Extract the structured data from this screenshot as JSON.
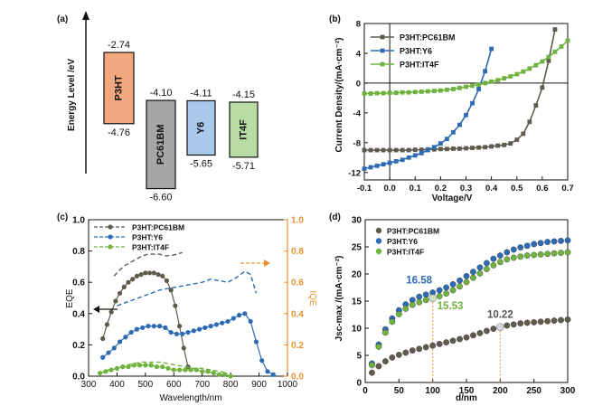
{
  "chart_data": [
    {
      "panel": "(a)",
      "type": "energy-level-diagram",
      "ylabel": "Energy Level /eV",
      "materials": [
        {
          "name": "P3HT",
          "lumo": -2.74,
          "homo": -4.76,
          "lumo_label": "-2.74",
          "homo_label": "-4.76",
          "color": "#F2A77E"
        },
        {
          "name": "PC61BM",
          "lumo": -4.1,
          "homo": -6.6,
          "lumo_label": "-4.10",
          "homo_label": "-6.60",
          "color": "#A6A6A6"
        },
        {
          "name": "Y6",
          "lumo": -4.11,
          "homo": -5.65,
          "lumo_label": "-4.11",
          "homo_label": "-5.65",
          "color": "#A9C8EA"
        },
        {
          "name": "IT4F",
          "lumo": -4.15,
          "homo": -5.71,
          "lumo_label": "-4.15",
          "homo_label": "-5.71",
          "color": "#B8DCA4"
        }
      ]
    },
    {
      "panel": "(b)",
      "type": "line",
      "xlabel": "Voltage/V",
      "ylabel": "Current Density/(mA·cm⁻²)",
      "xlim": [
        -0.1,
        0.7
      ],
      "ylim": [
        -13,
        8
      ],
      "xticks": [
        "-0.1",
        "0.0",
        "0.1",
        "0.2",
        "0.3",
        "0.4",
        "0.5",
        "0.6",
        "0.7"
      ],
      "yticks": [
        "-12",
        "-8",
        "-4",
        "0",
        "4",
        "8"
      ],
      "legend_position": "top-left",
      "series": [
        {
          "name": "P3HT:PC61BM",
          "color": "#5E5A4C",
          "marker": "square",
          "x": [
            -0.1,
            -0.075,
            -0.05,
            -0.025,
            0,
            0.025,
            0.05,
            0.075,
            0.1,
            0.125,
            0.15,
            0.175,
            0.2,
            0.225,
            0.25,
            0.275,
            0.3,
            0.325,
            0.35,
            0.375,
            0.4,
            0.425,
            0.45,
            0.475,
            0.5,
            0.525,
            0.55,
            0.575,
            0.6,
            0.625,
            0.65
          ],
          "y": [
            -9.0,
            -9.0,
            -9.0,
            -9.0,
            -9.0,
            -9.0,
            -9.0,
            -9.0,
            -8.95,
            -8.95,
            -8.9,
            -8.9,
            -8.85,
            -8.85,
            -8.8,
            -8.8,
            -8.75,
            -8.7,
            -8.65,
            -8.6,
            -8.5,
            -8.4,
            -8.3,
            -8.1,
            -7.6,
            -6.8,
            -5.2,
            -3.0,
            -0.6,
            3.0,
            7.2
          ]
        },
        {
          "name": "P3HT:Y6",
          "color": "#2E6BB5",
          "marker": "square",
          "x": [
            -0.1,
            -0.075,
            -0.05,
            -0.025,
            0,
            0.025,
            0.05,
            0.075,
            0.1,
            0.125,
            0.15,
            0.175,
            0.2,
            0.225,
            0.25,
            0.275,
            0.3,
            0.325,
            0.35,
            0.375,
            0.4
          ],
          "y": [
            -11.5,
            -11.3,
            -11.1,
            -10.9,
            -10.7,
            -10.5,
            -10.3,
            -10.0,
            -9.7,
            -9.4,
            -9.0,
            -8.6,
            -8.1,
            -7.5,
            -6.6,
            -5.6,
            -4.3,
            -2.7,
            -0.8,
            1.6,
            4.6
          ]
        },
        {
          "name": "P3HT:IT4F",
          "color": "#6FB23E",
          "marker": "square",
          "x": [
            -0.1,
            -0.075,
            -0.05,
            -0.025,
            0,
            0.025,
            0.05,
            0.075,
            0.1,
            0.125,
            0.15,
            0.175,
            0.2,
            0.225,
            0.25,
            0.275,
            0.3,
            0.325,
            0.35,
            0.375,
            0.4,
            0.425,
            0.45,
            0.475,
            0.5,
            0.525,
            0.55,
            0.575,
            0.6,
            0.625,
            0.65,
            0.675,
            0.7
          ],
          "y": [
            -1.4,
            -1.4,
            -1.35,
            -1.35,
            -1.3,
            -1.3,
            -1.25,
            -1.25,
            -1.2,
            -1.15,
            -1.1,
            -1.05,
            -1.0,
            -0.9,
            -0.8,
            -0.65,
            -0.5,
            -0.35,
            -0.2,
            0.0,
            0.2,
            0.4,
            0.65,
            0.9,
            1.2,
            1.55,
            1.95,
            2.4,
            2.9,
            3.5,
            4.2,
            4.9,
            5.7
          ]
        }
      ]
    },
    {
      "panel": "(c)",
      "type": "line",
      "xlabel": "Wavelength/nm",
      "ylabel": "EQE",
      "ylabel_right": "IQE",
      "xlim": [
        300,
        1000
      ],
      "ylim": [
        0,
        1.0
      ],
      "xticks": [
        "300",
        "400",
        "500",
        "600",
        "700",
        "800",
        "900",
        "1000"
      ],
      "yticks": [
        "0.0",
        "0.2",
        "0.4",
        "0.6",
        "0.8",
        "1.0"
      ],
      "legend_position": "top-left",
      "series": [
        {
          "name": "P3HT:PC61BM",
          "color": "#5E5A4C",
          "eqe_x": [
            350,
            365,
            380,
            395,
            410,
            425,
            440,
            455,
            470,
            485,
            500,
            515,
            530,
            545,
            560,
            575,
            590,
            605,
            620,
            635,
            650
          ],
          "eqe_y": [
            0.24,
            0.33,
            0.41,
            0.48,
            0.53,
            0.57,
            0.6,
            0.62,
            0.64,
            0.65,
            0.66,
            0.66,
            0.66,
            0.65,
            0.64,
            0.61,
            0.55,
            0.45,
            0.32,
            0.18,
            0.06
          ],
          "iqe_x": [
            390,
            410,
            430,
            450,
            470,
            490,
            510,
            530,
            550,
            570,
            590,
            610,
            630
          ],
          "iqe_y": [
            0.64,
            0.68,
            0.71,
            0.73,
            0.75,
            0.77,
            0.78,
            0.78,
            0.78,
            0.77,
            0.77,
            0.78,
            0.79
          ]
        },
        {
          "name": "P3HT:Y6",
          "color": "#2E6BB5",
          "eqe_x": [
            350,
            370,
            390,
            410,
            430,
            450,
            470,
            490,
            510,
            530,
            550,
            570,
            590,
            610,
            630,
            650,
            670,
            690,
            710,
            730,
            750,
            770,
            790,
            810,
            830,
            850,
            870,
            890,
            910,
            930,
            950
          ],
          "eqe_y": [
            0.12,
            0.15,
            0.18,
            0.22,
            0.25,
            0.28,
            0.3,
            0.31,
            0.32,
            0.32,
            0.32,
            0.31,
            0.28,
            0.27,
            0.27,
            0.28,
            0.29,
            0.3,
            0.31,
            0.32,
            0.33,
            0.34,
            0.35,
            0.37,
            0.39,
            0.4,
            0.35,
            0.22,
            0.1,
            0.03,
            0.01
          ],
          "iqe_x": [
            400,
            430,
            460,
            490,
            520,
            550,
            580,
            610,
            640,
            670,
            700,
            730,
            760,
            790,
            820,
            850,
            870,
            890
          ],
          "iqe_y": [
            0.45,
            0.47,
            0.49,
            0.51,
            0.53,
            0.55,
            0.56,
            0.57,
            0.58,
            0.59,
            0.6,
            0.62,
            0.61,
            0.6,
            0.63,
            0.67,
            0.65,
            0.53
          ]
        },
        {
          "name": "P3HT:IT4F",
          "color": "#6FB23E",
          "eqe_x": [
            340,
            360,
            380,
            400,
            420,
            440,
            460,
            480,
            500,
            520,
            540,
            560,
            580,
            600,
            620,
            640,
            660,
            680,
            700,
            720,
            740,
            760,
            780,
            800
          ],
          "eqe_y": [
            0.02,
            0.03,
            0.04,
            0.05,
            0.06,
            0.06,
            0.07,
            0.07,
            0.07,
            0.07,
            0.06,
            0.06,
            0.05,
            0.04,
            0.04,
            0.04,
            0.04,
            0.04,
            0.03,
            0.03,
            0.02,
            0.01,
            0.01,
            0.0
          ],
          "iqe_x": [
            340,
            370,
            400,
            430,
            460,
            490,
            520,
            550,
            580,
            610,
            640,
            670,
            700,
            730,
            760,
            790
          ],
          "iqe_y": [
            0.02,
            0.04,
            0.05,
            0.07,
            0.08,
            0.09,
            0.09,
            0.09,
            0.08,
            0.07,
            0.06,
            0.05,
            0.05,
            0.04,
            0.03,
            0.02
          ]
        }
      ],
      "annotations": []
    },
    {
      "panel": "(d)",
      "type": "scatter",
      "xlabel": "d/nm",
      "ylabel": "Jsc-max /(mA·cm⁻²)",
      "xlim": [
        0,
        300
      ],
      "ylim": [
        0,
        30
      ],
      "xticks": [
        "0",
        "50",
        "100",
        "150",
        "200",
        "250",
        "300"
      ],
      "yticks": [
        "0",
        "5",
        "10",
        "15",
        "20",
        "25",
        "30"
      ],
      "legend_position": "top-left",
      "series": [
        {
          "name": "P3HT:PC61BM",
          "color": "#5E5A4C",
          "x": [
            10,
            20,
            30,
            40,
            50,
            60,
            70,
            80,
            90,
            100,
            110,
            120,
            130,
            140,
            150,
            160,
            170,
            180,
            190,
            200,
            210,
            220,
            230,
            240,
            250,
            260,
            270,
            280,
            290,
            300
          ],
          "y": [
            1.8,
            3.0,
            3.9,
            4.6,
            5.1,
            5.5,
            5.9,
            6.2,
            6.5,
            6.8,
            7.1,
            7.4,
            7.7,
            8.0,
            8.3,
            8.7,
            9.1,
            9.5,
            9.9,
            10.22,
            10.5,
            10.7,
            10.9,
            11.0,
            11.1,
            11.2,
            11.3,
            11.4,
            11.5,
            11.6
          ]
        },
        {
          "name": "P3HT:Y6",
          "color": "#2E6BB5",
          "x": [
            10,
            20,
            30,
            40,
            50,
            60,
            70,
            80,
            90,
            100,
            110,
            120,
            130,
            140,
            150,
            160,
            170,
            180,
            190,
            200,
            210,
            220,
            230,
            240,
            250,
            260,
            270,
            280,
            290,
            300
          ],
          "y": [
            3.5,
            7.0,
            9.8,
            11.8,
            13.3,
            14.4,
            15.2,
            15.8,
            16.2,
            16.58,
            17.0,
            17.5,
            18.1,
            18.8,
            19.6,
            20.4,
            21.2,
            22.0,
            22.8,
            23.4,
            24.0,
            24.5,
            24.9,
            25.2,
            25.5,
            25.7,
            25.9,
            26.0,
            26.1,
            26.2
          ]
        },
        {
          "name": "P3HT:IT4F",
          "color": "#6FB23E",
          "x": [
            10,
            20,
            30,
            40,
            50,
            60,
            70,
            80,
            90,
            100,
            110,
            120,
            130,
            140,
            150,
            160,
            170,
            180,
            190,
            200,
            210,
            220,
            230,
            240,
            250,
            260,
            270,
            280,
            290,
            300
          ],
          "y": [
            3.2,
            6.6,
            9.2,
            11.2,
            12.6,
            13.6,
            14.3,
            14.8,
            15.2,
            15.53,
            15.9,
            16.4,
            17.0,
            17.7,
            18.5,
            19.3,
            20.1,
            20.9,
            21.6,
            22.2,
            22.7,
            23.0,
            23.2,
            23.4,
            23.5,
            23.6,
            23.7,
            23.8,
            23.9,
            24.0
          ]
        }
      ],
      "annotations": [
        {
          "text": "16.58",
          "x": 100,
          "y": 16.58,
          "color": "#2E6BB5"
        },
        {
          "text": "15.53",
          "x": 100,
          "y": 15.53,
          "color": "#6FB23E"
        },
        {
          "text": "10.22",
          "x": 200,
          "y": 10.22,
          "color": "#555555"
        }
      ]
    }
  ]
}
